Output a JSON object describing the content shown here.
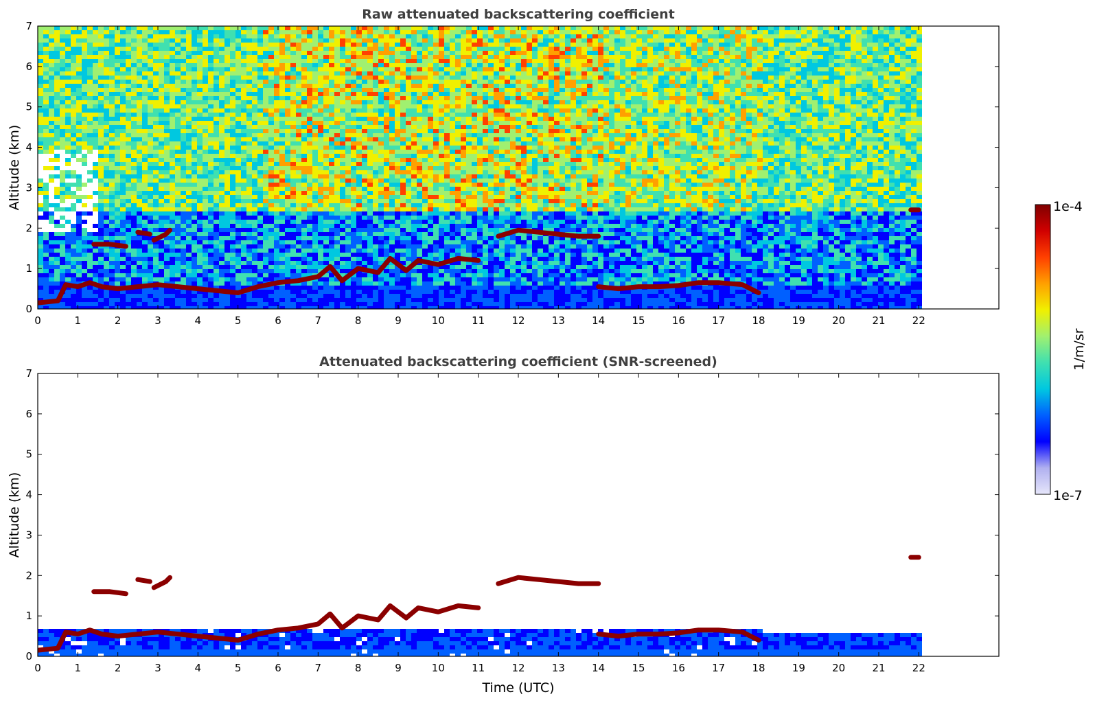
{
  "colors": {
    "scale": [
      "#e6e6fa",
      "#b0b0f0",
      "#0000ff",
      "#0060ff",
      "#00c8e0",
      "#40e0b0",
      "#a0f070",
      "#f0f000",
      "#ffa000",
      "#ff4000",
      "#d00000",
      "#800000"
    ],
    "cloud_layer": "#8b0000",
    "frame": "#000000"
  },
  "chart_data": [
    {
      "type": "heatmap",
      "title": "Raw attenuated backscattering coefficient",
      "xlabel": "",
      "ylabel": "Altitude (km)",
      "xlim": [
        0,
        24
      ],
      "ylim": [
        0,
        7
      ],
      "x_ticks": [
        "0",
        "1",
        "2",
        "3",
        "4",
        "5",
        "6",
        "7",
        "8",
        "9",
        "10",
        "11",
        "12",
        "13",
        "14",
        "15",
        "16",
        "17",
        "18",
        "19",
        "20",
        "21",
        "22"
      ],
      "y_ticks": [
        "0",
        "1",
        "2",
        "3",
        "4",
        "5",
        "6",
        "7"
      ],
      "data_extent_x": [
        0,
        22
      ],
      "screening": "none",
      "layers": [
        {
          "name": "",
          "points": [
            [
              0.0,
              0.15
            ],
            [
              0.5,
              0.2
            ],
            [
              0.7,
              0.6
            ],
            [
              1.0,
              0.55
            ],
            [
              1.3,
              0.65
            ],
            [
              1.6,
              0.55
            ],
            [
              2.0,
              0.5
            ],
            [
              2.5,
              0.55
            ],
            [
              3.0,
              0.6
            ],
            [
              3.5,
              0.55
            ],
            [
              4.0,
              0.5
            ],
            [
              4.5,
              0.45
            ],
            [
              5.0,
              0.4
            ],
            [
              5.5,
              0.55
            ],
            [
              6.0,
              0.65
            ],
            [
              6.5,
              0.7
            ],
            [
              7.0,
              0.8
            ],
            [
              7.3,
              1.05
            ],
            [
              7.6,
              0.7
            ],
            [
              8.0,
              1.0
            ],
            [
              8.5,
              0.9
            ],
            [
              8.8,
              1.25
            ],
            [
              9.2,
              0.95
            ],
            [
              9.5,
              1.2
            ],
            [
              10.0,
              1.1
            ],
            [
              10.5,
              1.25
            ],
            [
              11.0,
              1.2
            ]
          ]
        },
        {
          "name": "",
          "points": [
            [
              1.4,
              1.6
            ],
            [
              1.8,
              1.6
            ],
            [
              2.2,
              1.55
            ]
          ]
        },
        {
          "name": "",
          "points": [
            [
              2.5,
              1.9
            ],
            [
              2.8,
              1.85
            ]
          ]
        },
        {
          "name": "",
          "points": [
            [
              2.9,
              1.7
            ],
            [
              3.2,
              1.85
            ],
            [
              3.3,
              1.95
            ]
          ]
        },
        {
          "name": "",
          "points": [
            [
              11.5,
              1.8
            ],
            [
              12.0,
              1.95
            ],
            [
              12.5,
              1.9
            ],
            [
              13.0,
              1.85
            ],
            [
              13.5,
              1.8
            ],
            [
              14.0,
              1.8
            ]
          ]
        },
        {
          "name": "",
          "points": [
            [
              14.0,
              0.55
            ],
            [
              14.5,
              0.5
            ],
            [
              15.0,
              0.55
            ],
            [
              15.5,
              0.55
            ],
            [
              16.0,
              0.58
            ],
            [
              16.5,
              0.65
            ],
            [
              17.0,
              0.65
            ],
            [
              17.6,
              0.6
            ],
            [
              18.0,
              0.4
            ]
          ]
        },
        {
          "name": "",
          "points": [
            [
              21.8,
              2.45
            ],
            [
              22.0,
              2.45
            ]
          ]
        }
      ]
    },
    {
      "type": "heatmap",
      "title": "Attenuated backscattering coefficient (SNR-screened)",
      "xlabel": "Time (UTC)",
      "ylabel": "Altitude (km)",
      "xlim": [
        0,
        24
      ],
      "ylim": [
        0,
        7
      ],
      "x_ticks": [
        "0",
        "1",
        "2",
        "3",
        "4",
        "5",
        "6",
        "7",
        "8",
        "9",
        "10",
        "11",
        "12",
        "13",
        "14",
        "15",
        "16",
        "17",
        "18",
        "19",
        "20",
        "21",
        "22"
      ],
      "y_ticks": [
        "0",
        "1",
        "2",
        "3",
        "4",
        "5",
        "6",
        "7"
      ],
      "data_extent_x": [
        0,
        22
      ],
      "screening": "SNR",
      "layers": [
        {
          "name": "",
          "points": [
            [
              0.0,
              0.15
            ],
            [
              0.5,
              0.2
            ],
            [
              0.7,
              0.6
            ],
            [
              1.0,
              0.55
            ],
            [
              1.3,
              0.65
            ],
            [
              1.6,
              0.55
            ],
            [
              2.0,
              0.5
            ],
            [
              2.5,
              0.55
            ],
            [
              3.0,
              0.6
            ],
            [
              3.5,
              0.55
            ],
            [
              4.0,
              0.5
            ],
            [
              4.5,
              0.45
            ],
            [
              5.0,
              0.4
            ],
            [
              5.5,
              0.55
            ],
            [
              6.0,
              0.65
            ],
            [
              6.5,
              0.7
            ],
            [
              7.0,
              0.8
            ],
            [
              7.3,
              1.05
            ],
            [
              7.6,
              0.7
            ],
            [
              8.0,
              1.0
            ],
            [
              8.5,
              0.9
            ],
            [
              8.8,
              1.25
            ],
            [
              9.2,
              0.95
            ],
            [
              9.5,
              1.2
            ],
            [
              10.0,
              1.1
            ],
            [
              10.5,
              1.25
            ],
            [
              11.0,
              1.2
            ]
          ]
        },
        {
          "name": "",
          "points": [
            [
              1.4,
              1.6
            ],
            [
              1.8,
              1.6
            ],
            [
              2.2,
              1.55
            ]
          ]
        },
        {
          "name": "",
          "points": [
            [
              2.5,
              1.9
            ],
            [
              2.8,
              1.85
            ]
          ]
        },
        {
          "name": "",
          "points": [
            [
              2.9,
              1.7
            ],
            [
              3.2,
              1.85
            ],
            [
              3.3,
              1.95
            ]
          ]
        },
        {
          "name": "",
          "points": [
            [
              11.5,
              1.8
            ],
            [
              12.0,
              1.95
            ],
            [
              12.5,
              1.9
            ],
            [
              13.0,
              1.85
            ],
            [
              13.5,
              1.8
            ],
            [
              14.0,
              1.8
            ]
          ]
        },
        {
          "name": "",
          "points": [
            [
              14.0,
              0.55
            ],
            [
              14.5,
              0.5
            ],
            [
              15.0,
              0.55
            ],
            [
              15.5,
              0.55
            ],
            [
              16.0,
              0.58
            ],
            [
              16.5,
              0.65
            ],
            [
              17.0,
              0.65
            ],
            [
              17.6,
              0.6
            ],
            [
              18.0,
              0.4
            ]
          ]
        },
        {
          "name": "",
          "points": [
            [
              21.8,
              2.45
            ],
            [
              22.0,
              2.45
            ]
          ]
        }
      ]
    }
  ],
  "colorbar": {
    "label": "1/m/sr",
    "max_label": "1e-4",
    "min_label": "1e-7",
    "scale": "log",
    "range": [
      1e-07,
      0.0001
    ]
  }
}
